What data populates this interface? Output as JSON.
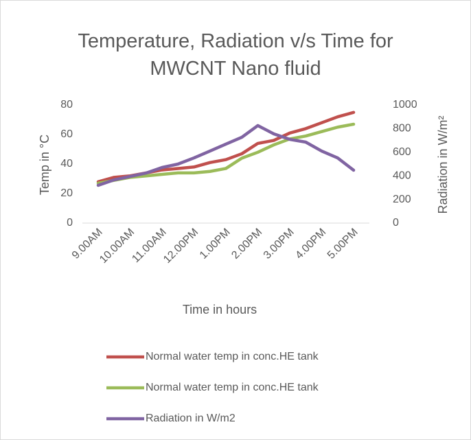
{
  "chart_data": {
    "type": "line",
    "title": "Temperature, Radiation v/s Time for MWCNT Nano fluid",
    "x_label": "Time in hours",
    "y_label": "Temp in °C",
    "y2_label": "Radiation in W/m²",
    "categories": [
      "9.00AM",
      null,
      "10.00AM",
      null,
      "11.00AM",
      null,
      "12.00PM",
      null,
      "1.00PM",
      null,
      "2.00PM",
      null,
      "3.00PM",
      null,
      "4.00PM",
      null,
      "5.00PM"
    ],
    "ylim": [
      0,
      80
    ],
    "yticks": [
      0,
      20,
      40,
      60,
      80
    ],
    "y2lim": [
      0,
      1000
    ],
    "y2ticks": [
      0,
      200,
      400,
      600,
      800,
      1000
    ],
    "legend": "bottom",
    "series": [
      {
        "name": "Normal water temp in conc.HE tank",
        "color": "#c0504d",
        "values": [
          28,
          31,
          32,
          34,
          36,
          37,
          38,
          41,
          43,
          47,
          54,
          56,
          61,
          64,
          68,
          72,
          75
        ]
      },
      {
        "name": "Normal water temp in conc.HE tank",
        "color": "#9bbb59",
        "values": [
          27,
          29,
          31,
          32,
          33,
          34,
          34,
          35,
          37,
          44,
          48,
          53,
          57,
          59,
          62,
          65,
          67
        ]
      },
      {
        "name": "Radiation in W/m2",
        "color": "#8064a2",
        "axis": "y2",
        "values": [
          320,
          366,
          395,
          424,
          471,
          500,
          552,
          610,
          669,
          727,
          826,
          756,
          709,
          686,
          610,
          552,
          448
        ]
      }
    ]
  }
}
